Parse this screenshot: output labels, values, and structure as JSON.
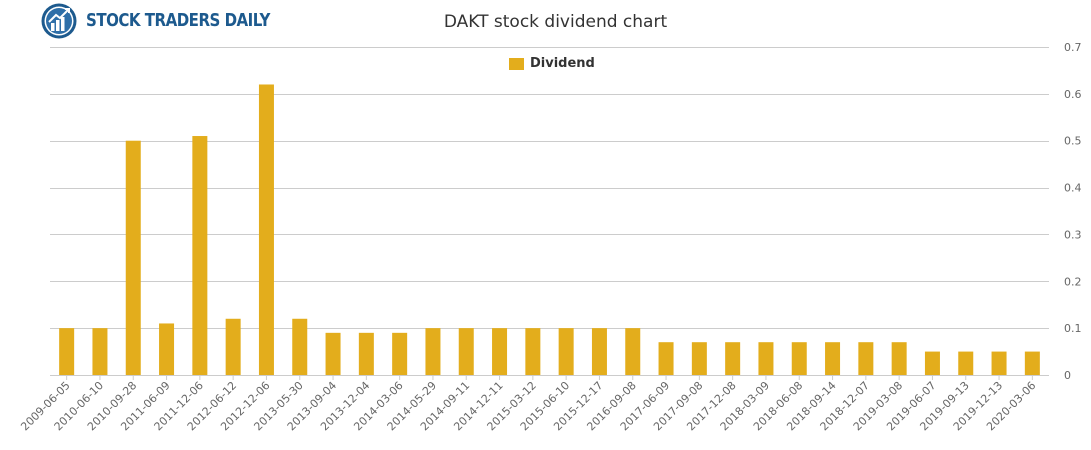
{
  "brand": {
    "name": "STOCK TRADERS DAILY",
    "logo_icon": "chart-globe-icon",
    "color": "#1d5a8e"
  },
  "colors": {
    "bar": "#e3ad1c",
    "grid": "#cccccc",
    "axis_text": "#666666"
  },
  "chart_data": {
    "type": "bar",
    "title": "DAKT stock dividend chart",
    "xlabel": "",
    "ylabel": "",
    "ylim": [
      0,
      0.7
    ],
    "yticks": [
      "0",
      "0.1",
      "0.2",
      "0.3",
      "0.4",
      "0.5",
      "0.6",
      "0.7"
    ],
    "y_axis_side": "right",
    "grid": true,
    "legend_position": "top-center",
    "categories": [
      "2009-06-05",
      "2010-06-10",
      "2010-09-28",
      "2011-06-09",
      "2011-12-06",
      "2012-06-12",
      "2012-12-06",
      "2013-05-30",
      "2013-09-04",
      "2013-12-04",
      "2014-03-06",
      "2014-05-29",
      "2014-09-11",
      "2014-12-11",
      "2015-03-12",
      "2015-06-10",
      "2015-12-17",
      "2016-09-08",
      "2017-06-09",
      "2017-09-08",
      "2017-12-08",
      "2018-03-09",
      "2018-06-08",
      "2018-09-14",
      "2018-12-07",
      "2019-03-08",
      "2019-06-07",
      "2019-09-13",
      "2019-12-13",
      "2020-03-06"
    ],
    "series": [
      {
        "name": "Dividend",
        "color": "#e3ad1c",
        "values": [
          0.1,
          0.1,
          0.5,
          0.11,
          0.51,
          0.12,
          0.62,
          0.12,
          0.09,
          0.09,
          0.09,
          0.1,
          0.1,
          0.1,
          0.1,
          0.1,
          0.1,
          0.1,
          0.07,
          0.07,
          0.07,
          0.07,
          0.07,
          0.07,
          0.07,
          0.07,
          0.05,
          0.05,
          0.05,
          0.05
        ]
      }
    ]
  }
}
